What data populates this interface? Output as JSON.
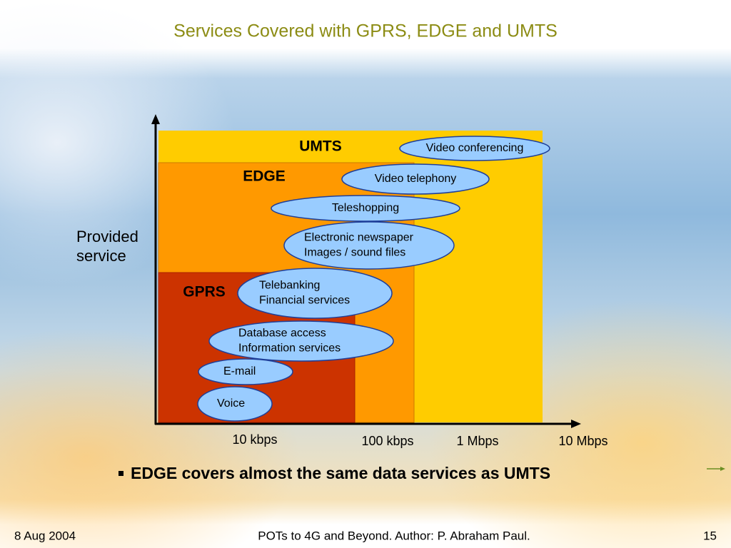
{
  "title": "Services Covered with GPRS, EDGE and UMTS",
  "diagram": {
    "regions": [
      {
        "label": "UMTS"
      },
      {
        "label": "EDGE"
      },
      {
        "label": "GPRS"
      }
    ],
    "services": [
      {
        "lines": [
          "Video conferencing"
        ]
      },
      {
        "lines": [
          "Video telephony"
        ]
      },
      {
        "lines": [
          "Teleshopping"
        ]
      },
      {
        "lines": [
          "Electronic newspaper",
          "Images / sound files"
        ]
      },
      {
        "lines": [
          "Telebanking",
          "Financial services"
        ]
      },
      {
        "lines": [
          "Database access",
          "Information services"
        ]
      },
      {
        "lines": [
          "E-mail"
        ]
      },
      {
        "lines": [
          "Voice"
        ]
      }
    ],
    "y_axis_label": [
      "Provided",
      "service"
    ],
    "x_axis_labels": [
      "10 kbps",
      "100 kbps",
      "1 Mbps",
      "10 Mbps"
    ]
  },
  "bullet": "EDGE covers almost the same data services as UMTS",
  "footer": {
    "date": "8 Aug 2004",
    "center": "POTs to 4G and Beyond. Author: P. Abraham Paul.",
    "page": "15"
  }
}
